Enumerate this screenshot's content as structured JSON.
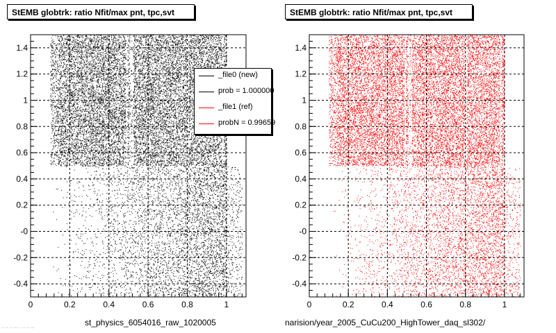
{
  "left_panel": {
    "title": "StEMB globtrk: ratio Nfit/max pnt, tpc,svt",
    "xlabel": "st_physics_6054016_raw_1020005"
  },
  "right_panel": {
    "title": "StEMB globtrk: ratio Nfit/max pnt, tpc,svt",
    "xlabel": "narision/year_2005_CuCu200_HighTower_daq_sl302/"
  },
  "legend": {
    "entries": [
      {
        "label": "_file0 (new)",
        "color": "#000000"
      },
      {
        "label": "prob = 1.000000",
        "color": "#000000"
      },
      {
        "label": "_file1 (ref)",
        "color": "#ff0000"
      },
      {
        "label": "probN = 0.99659",
        "color": "#ff0000"
      }
    ]
  },
  "footer": {
    "text": "·· ·· ·· ···· · ·· ·· ···"
  },
  "chart_data": [
    {
      "type": "scatter",
      "title": "StEMB globtrk: ratio Nfit/max pnt, tpc,svt",
      "xlabel": "st_physics_6054016_raw_1020005",
      "ylabel": "",
      "xlim": [
        0,
        1.1
      ],
      "ylim": [
        -0.5,
        1.5
      ],
      "xticks": [
        0,
        0.2,
        0.4,
        0.6,
        0.8,
        1
      ],
      "xtick_labels": [
        "0",
        "0.2",
        "0.4",
        "0.6",
        "0.8",
        "1"
      ],
      "yticks": [
        -0.4,
        -0.2,
        0,
        0.2,
        0.4,
        0.6,
        0.8,
        1,
        1.2,
        1.4
      ],
      "ytick_labels": [
        "-0.4",
        "-0.2",
        "-0",
        "0.2",
        "0.4",
        "0.6",
        "0.8",
        "1",
        "1.2",
        "1.4"
      ],
      "grid": true,
      "series": [
        {
          "color": "#000000",
          "dense_region": {
            "x": [
              0.1,
              1.0
            ],
            "y": [
              0.5,
              1.5
            ]
          },
          "sparse_region": {
            "x": [
              0.1,
              1.08
            ],
            "y": [
              -0.5,
              0.5
            ],
            "density_increases_with_x": true
          },
          "gaps_x": [
            0.49,
            0.51,
            0.52,
            0.8,
            0.98
          ]
        }
      ]
    },
    {
      "type": "scatter",
      "title": "StEMB globtrk: ratio Nfit/max pnt, tpc,svt",
      "xlabel": "narision/year_2005_CuCu200_HighTower_daq_sl302/",
      "ylabel": "",
      "xlim": [
        0,
        1.1
      ],
      "ylim": [
        -0.5,
        1.5
      ],
      "xticks": [
        0,
        0.2,
        0.4,
        0.6,
        0.8,
        1
      ],
      "xtick_labels": [
        "0",
        "0.2",
        "0.4",
        "0.6",
        "0.8",
        "1"
      ],
      "yticks": [
        -0.4,
        -0.2,
        0,
        0.2,
        0.4,
        0.6,
        0.8,
        1,
        1.2,
        1.4
      ],
      "ytick_labels": [
        "-0.4",
        "-0.2",
        "-0",
        "0.2",
        "0.4",
        "0.6",
        "0.8",
        "1",
        "1.2",
        "1.4"
      ],
      "grid": true,
      "series": [
        {
          "color": "#ff0000",
          "dense_region": {
            "x": [
              0.1,
              1.0
            ],
            "y": [
              0.5,
              1.5
            ]
          },
          "sparse_region": {
            "x": [
              0.1,
              1.08
            ],
            "y": [
              -0.5,
              0.5
            ],
            "density_increases_with_x": true
          },
          "gaps_x": [
            0.49,
            0.51,
            0.52,
            0.8,
            0.98
          ]
        }
      ]
    }
  ]
}
